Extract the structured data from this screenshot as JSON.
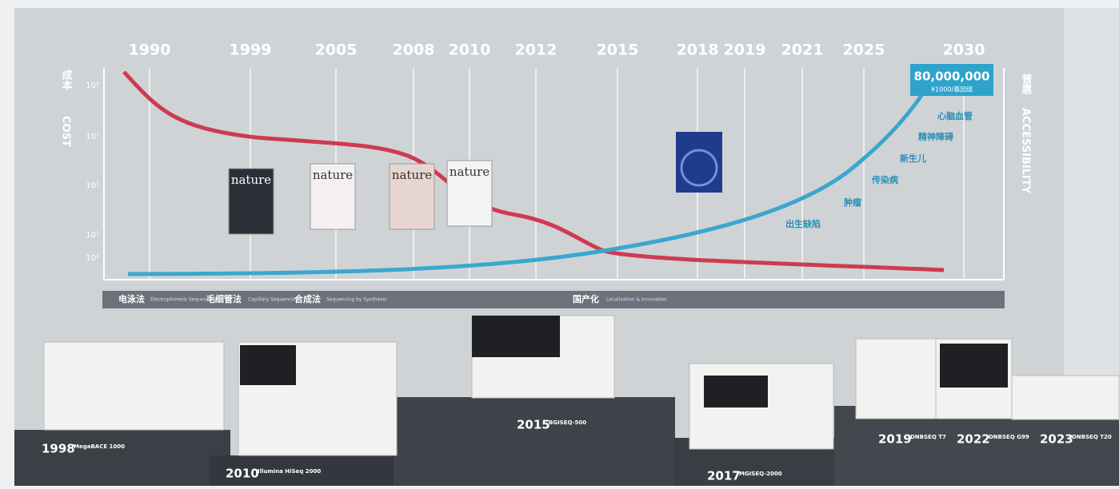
{
  "years": [
    "1990",
    "1999",
    "2005",
    "2008",
    "2010",
    "2012",
    "2015",
    "2018",
    "2019",
    "2021",
    "2025",
    "2030"
  ],
  "left_axis": {
    "label_cn": "成本",
    "label_en": "COST",
    "ticks": [
      "10⁹",
      "10⁷",
      "10⁵",
      "10³",
      "10²"
    ]
  },
  "right_axis": {
    "label_cn": "普惠",
    "label_en": "ACCESSIBILITY"
  },
  "callout": {
    "value": "80,000,000",
    "sub": "¥1000/基因组"
  },
  "applications": [
    "出生缺陷",
    "肿瘤",
    "传染病",
    "新生儿",
    "精神障碍",
    "心脑血管"
  ],
  "phases": [
    {
      "cn": "电泳法",
      "en": "Electrophoresis Sequencing"
    },
    {
      "cn": "毛细管法",
      "en": "Capillary Sequencing"
    },
    {
      "cn": "合成法",
      "en": "Sequencing by Synthesis"
    },
    {
      "cn": "国产化",
      "en": "Localization & Innovation"
    }
  ],
  "magazines": [
    "nature",
    "nature",
    "nature",
    "nature"
  ],
  "instruments": [
    {
      "year": "1998",
      "name": "MegaBACE 1000"
    },
    {
      "year": "2010",
      "name": "Illumina HiSeq 2000"
    },
    {
      "year": "2015",
      "name": "BGISEQ-500"
    },
    {
      "year": "2017",
      "name": "MGISEQ-2000"
    },
    {
      "year": "2019",
      "name": "DNBSEQ T7"
    },
    {
      "year": "2022",
      "name": "DNBSEQ G99"
    },
    {
      "year": "2023",
      "name": "DNBSEQ T20"
    }
  ]
}
